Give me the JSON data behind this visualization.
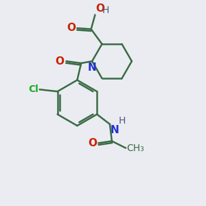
{
  "bg_color": "#eaecf2",
  "bond_color": "#3a6b45",
  "O_color": "#cc2200",
  "N_color": "#2233cc",
  "Cl_color": "#22aa22",
  "H_color": "#555577",
  "lw": 1.8,
  "figsize": [
    3.0,
    3.0
  ],
  "dpi": 100,
  "xlim": [
    0,
    10
  ],
  "ylim": [
    0,
    10
  ]
}
